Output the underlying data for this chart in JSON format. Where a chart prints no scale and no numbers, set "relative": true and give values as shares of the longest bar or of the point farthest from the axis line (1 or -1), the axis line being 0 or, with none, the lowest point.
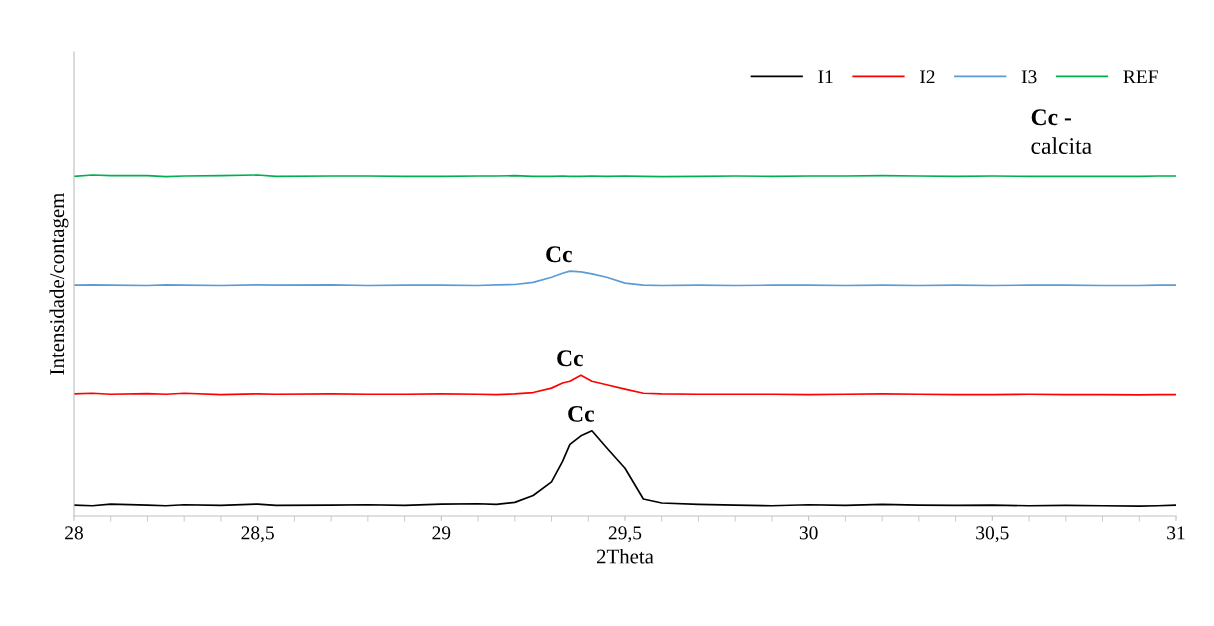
{
  "chart_data": {
    "type": "line",
    "relative": true,
    "xlabel": "2Theta",
    "ylabel": "Intensidade/contagem",
    "xlim": [
      28,
      31
    ],
    "xticks": [
      28,
      {
        "value": 28.5,
        "label": "28,5"
      },
      29,
      {
        "value": 29.5,
        "label": "29,5"
      },
      30,
      {
        "value": 30.5,
        "label": "30,5"
      },
      31
    ],
    "x": [
      28,
      28.05,
      28.1,
      28.2,
      28.25,
      28.3,
      28.4,
      28.5,
      28.55,
      28.7,
      28.8,
      28.9,
      29.0,
      29.1,
      29.15,
      29.2,
      29.25,
      29.3,
      29.33,
      29.35,
      29.38,
      29.41,
      29.45,
      29.5,
      29.55,
      29.6,
      29.7,
      29.8,
      29.9,
      30.0,
      30.1,
      30.2,
      30.3,
      30.4,
      30.5,
      30.6,
      30.7,
      30.8,
      30.9,
      30.95,
      31
    ],
    "series": [
      {
        "name": "I1",
        "color": "#000000",
        "values": [
          0.032,
          0.03,
          0.035,
          0.032,
          0.03,
          0.033,
          0.031,
          0.035,
          0.031,
          0.032,
          0.033,
          0.031,
          0.035,
          0.036,
          0.034,
          0.04,
          0.06,
          0.1,
          0.16,
          0.21,
          0.235,
          0.25,
          0.2,
          0.14,
          0.05,
          0.038,
          0.034,
          0.032,
          0.03,
          0.033,
          0.031,
          0.034,
          0.032,
          0.031,
          0.032,
          0.03,
          0.031,
          0.03,
          0.029,
          0.03,
          0.032
        ]
      },
      {
        "name": "I2",
        "color": "#ff0000",
        "values": [
          0.358,
          0.36,
          0.357,
          0.359,
          0.357,
          0.36,
          0.356,
          0.358,
          0.357,
          0.358,
          0.357,
          0.357,
          0.358,
          0.357,
          0.356,
          0.358,
          0.362,
          0.375,
          0.39,
          0.395,
          0.413,
          0.395,
          0.385,
          0.372,
          0.36,
          0.358,
          0.357,
          0.357,
          0.357,
          0.356,
          0.357,
          0.358,
          0.357,
          0.356,
          0.356,
          0.357,
          0.356,
          0.356,
          0.355,
          0.356,
          0.356
        ]
      },
      {
        "name": "I3",
        "color": "#5b9bd5",
        "values": [
          0.677,
          0.678,
          0.677,
          0.676,
          0.678,
          0.677,
          0.676,
          0.678,
          0.677,
          0.678,
          0.676,
          0.677,
          0.677,
          0.676,
          0.678,
          0.679,
          0.685,
          0.7,
          0.712,
          0.718,
          0.716,
          0.71,
          0.7,
          0.683,
          0.677,
          0.676,
          0.677,
          0.676,
          0.677,
          0.677,
          0.676,
          0.677,
          0.676,
          0.677,
          0.676,
          0.677,
          0.677,
          0.676,
          0.676,
          0.677,
          0.677
        ]
      },
      {
        "name": "REF",
        "color": "#00b050",
        "values": [
          0.996,
          1.0,
          0.998,
          0.998,
          0.995,
          0.997,
          0.998,
          1.0,
          0.996,
          0.997,
          0.997,
          0.996,
          0.996,
          0.997,
          0.997,
          0.998,
          0.996,
          0.996,
          0.997,
          0.996,
          0.996,
          0.997,
          0.996,
          0.997,
          0.996,
          0.995,
          0.996,
          0.997,
          0.996,
          0.997,
          0.997,
          0.998,
          0.997,
          0.996,
          0.997,
          0.996,
          0.996,
          0.996,
          0.996,
          0.997,
          0.997
        ]
      }
    ],
    "annotations": [
      {
        "text": "Cc",
        "x": 29.41,
        "y": 0.25
      },
      {
        "text": "Cc",
        "x": 29.38,
        "y": 0.413
      },
      {
        "text": "Cc",
        "x": 29.35,
        "y": 0.718
      },
      "Cc -\ncalcita"
    ],
    "legend": "top right",
    "grid": false,
    "marker": "none",
    "line_style": "solid"
  }
}
